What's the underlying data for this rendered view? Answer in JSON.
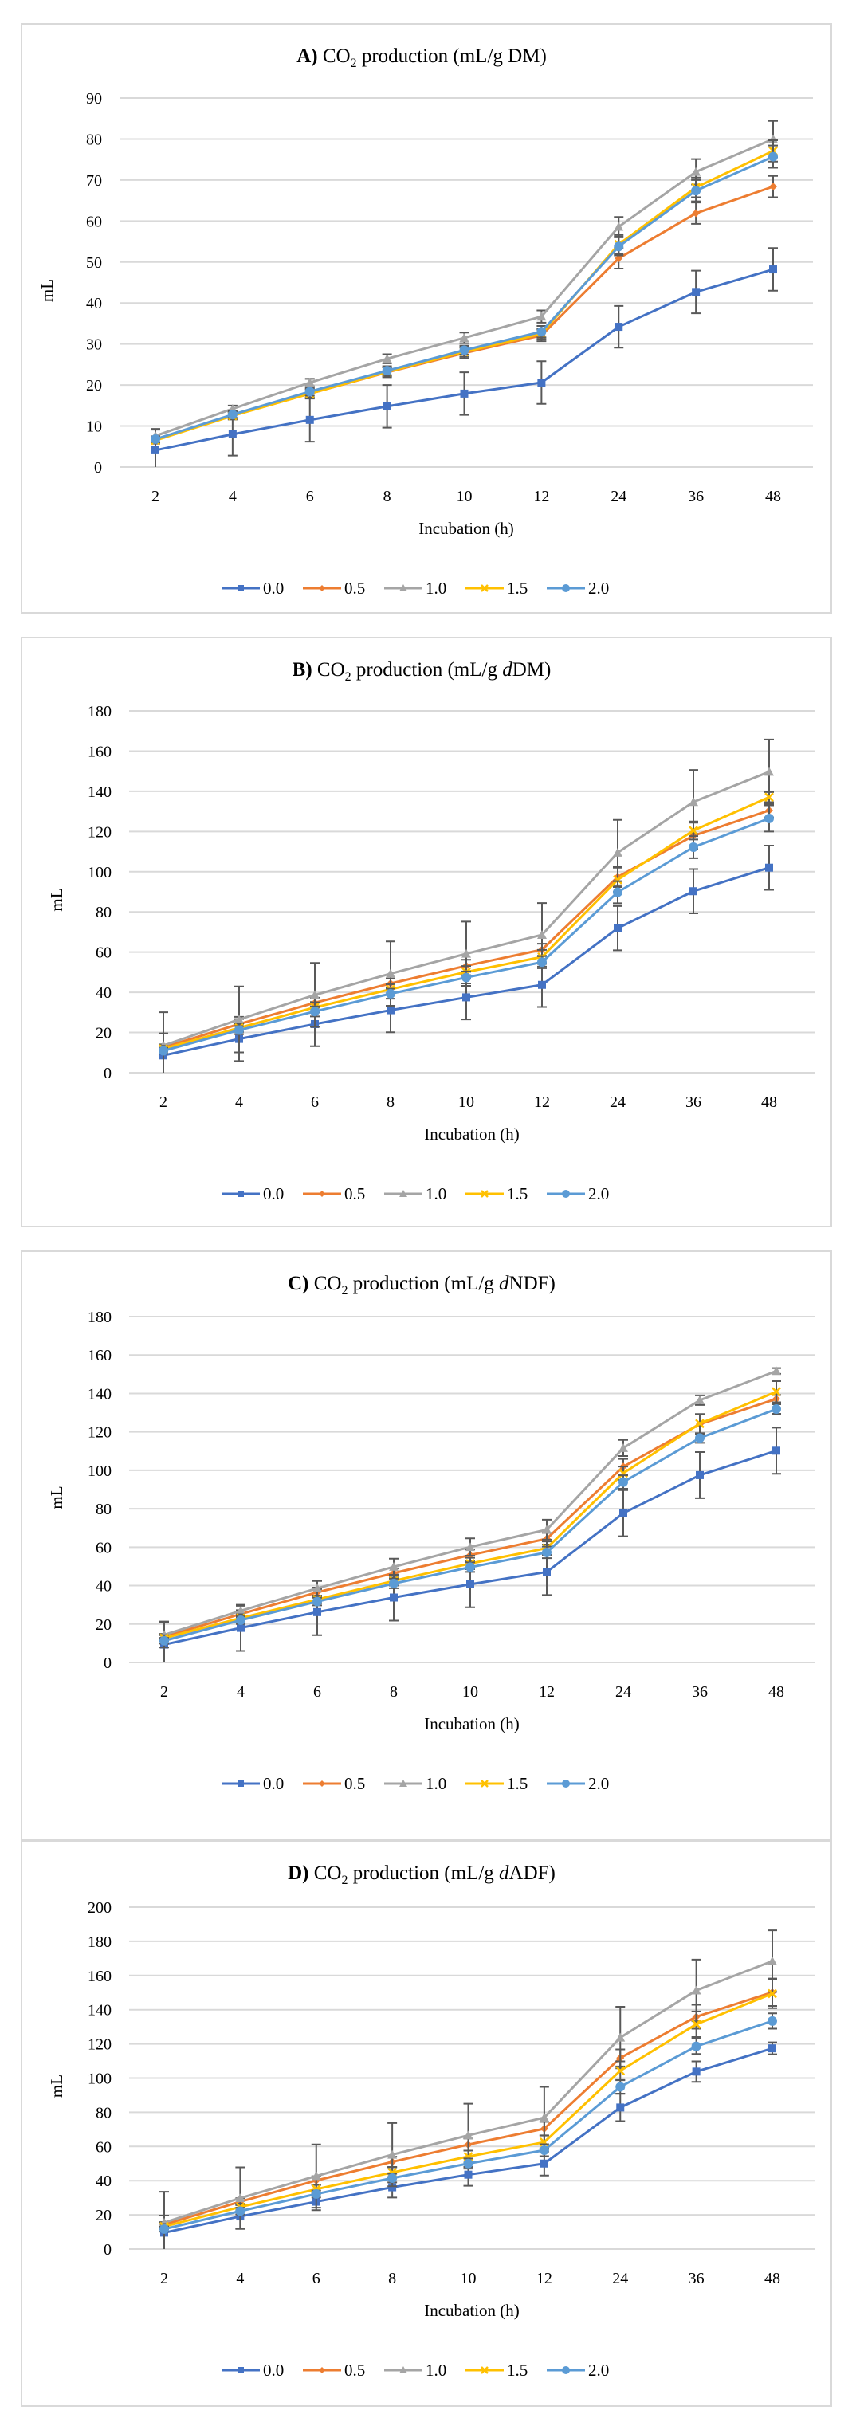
{
  "chart_data": [
    {
      "type": "line",
      "panel": "A)",
      "title_main": "CO",
      "title_sub": "2",
      "title_rest": " production (mL/g ",
      "title_italic": "",
      "title_end": "DM)",
      "title": "A) CO2 production (mL/g DM)",
      "xlabel": "Incubation (h)",
      "ylabel": "mL",
      "ylim": [
        0,
        90
      ],
      "yticks": [
        0,
        10,
        20,
        30,
        40,
        50,
        60,
        70,
        80,
        90
      ],
      "grid": true,
      "legend_position": "bottom",
      "categories": [
        "2",
        "4",
        "6",
        "8",
        "10",
        "12",
        "24",
        "36",
        "48"
      ],
      "series": [
        {
          "name": "0.0",
          "color": "#4472c4",
          "marker": "square",
          "values": [
            4.1,
            8.0,
            11.5,
            14.8,
            17.9,
            20.6,
            34.2,
            42.7,
            48.2
          ],
          "error": [
            5.0,
            5.2,
            5.3,
            5.2,
            5.2,
            5.2,
            5.1,
            5.2,
            5.2
          ]
        },
        {
          "name": "0.5",
          "color": "#ed7d31",
          "marker": "diamond",
          "values": [
            6.6,
            12.6,
            17.9,
            23.1,
            27.8,
            32.1,
            50.9,
            61.9,
            68.4
          ],
          "error": [
            0.8,
            0.9,
            1.2,
            1.2,
            1.3,
            1.4,
            2.5,
            2.6,
            2.6
          ]
        },
        {
          "name": "1.0",
          "color": "#a5a5a5",
          "marker": "triangle",
          "values": [
            7.6,
            14.2,
            20.6,
            26.4,
            31.5,
            36.7,
            58.6,
            72.0,
            80.0
          ],
          "error": [
            1.7,
            0.8,
            0.9,
            1.1,
            1.3,
            1.5,
            2.4,
            3.1,
            4.4
          ]
        },
        {
          "name": "1.5",
          "color": "#ffc000",
          "marker": "x",
          "values": [
            6.5,
            12.5,
            17.9,
            23.2,
            28.1,
            32.5,
            54.3,
            68.2,
            77.1
          ],
          "error": [
            0.8,
            0.9,
            1.0,
            1.1,
            1.2,
            1.3,
            2.3,
            2.4,
            2.6
          ]
        },
        {
          "name": "2.0",
          "color": "#5b9bd5",
          "marker": "circle",
          "values": [
            6.8,
            12.8,
            18.4,
            23.5,
            28.5,
            33.0,
            53.8,
            67.4,
            75.7
          ],
          "error": [
            0.7,
            0.8,
            1.0,
            1.1,
            1.1,
            1.4,
            2.2,
            2.6,
            2.7
          ]
        }
      ]
    },
    {
      "type": "line",
      "panel": "B)",
      "title_main": "CO",
      "title_sub": "2",
      "title_rest": " production (mL/g ",
      "title_italic": "d",
      "title_end": "DM)",
      "title": "B) CO2 production (mL/g dDM)",
      "xlabel": "Incubation (h)",
      "ylabel": "mL",
      "ylim": [
        0,
        180
      ],
      "yticks": [
        0,
        20,
        40,
        60,
        80,
        100,
        120,
        140,
        160,
        180
      ],
      "grid": true,
      "legend_position": "bottom",
      "categories": [
        "2",
        "4",
        "6",
        "8",
        "10",
        "12",
        "24",
        "36",
        "48"
      ],
      "series": [
        {
          "name": "0.0",
          "color": "#4472c4",
          "marker": "square",
          "values": [
            8.6,
            16.8,
            24.2,
            31.1,
            37.5,
            43.7,
            71.9,
            90.3,
            102.0
          ],
          "error": [
            11.0,
            11.0,
            11.0,
            11.0,
            11.0,
            11.0,
            11.0,
            11.0,
            11.0
          ]
        },
        {
          "name": "0.5",
          "color": "#ed7d31",
          "marker": "diamond",
          "values": [
            12.6,
            24.2,
            34.8,
            44.4,
            53.2,
            61.2,
            97.4,
            117.9,
            130.5
          ],
          "error": [
            1.5,
            2.5,
            2.5,
            2.5,
            3.0,
            3.0,
            5.0,
            6.5,
            3.5
          ]
        },
        {
          "name": "1.0",
          "color": "#a5a5a5",
          "marker": "triangle",
          "values": [
            13.5,
            26.5,
            38.7,
            49.3,
            59.2,
            68.6,
            109.5,
            134.7,
            149.7
          ],
          "error": [
            16.6,
            16.4,
            15.9,
            16.0,
            16.0,
            15.8,
            16.3,
            15.9,
            16.1
          ]
        },
        {
          "name": "1.5",
          "color": "#ffc000",
          "marker": "x",
          "values": [
            11.9,
            22.3,
            32.5,
            41.5,
            50.1,
            57.6,
            96.0,
            120.5,
            137.1
          ],
          "error": [
            1.5,
            2.0,
            2.5,
            2.5,
            3.0,
            3.5,
            6.0,
            4.5,
            2.5
          ]
        },
        {
          "name": "2.0",
          "color": "#5b9bd5",
          "marker": "circle",
          "values": [
            10.9,
            21.2,
            30.5,
            39.3,
            47.4,
            55.0,
            89.8,
            112.2,
            126.5
          ],
          "error": [
            1.5,
            2.0,
            2.5,
            2.5,
            3.0,
            3.0,
            5.5,
            5.5,
            6.5
          ]
        }
      ]
    },
    {
      "type": "line",
      "panel": "C)",
      "title_main": "CO",
      "title_sub": "2",
      "title_rest": " production (mL/g ",
      "title_italic": "d",
      "title_end": "NDF)",
      "title": "C) CO2 production (mL/g dNDF)",
      "xlabel": "Incubation (h)",
      "ylabel": "mL",
      "ylim": [
        0,
        180
      ],
      "yticks": [
        0,
        20,
        40,
        60,
        80,
        100,
        120,
        140,
        160,
        180
      ],
      "grid": true,
      "legend_position": "bottom",
      "categories": [
        "2",
        "4",
        "6",
        "8",
        "10",
        "12",
        "24",
        "36",
        "48"
      ],
      "series": [
        {
          "name": "0.0",
          "color": "#4472c4",
          "marker": "square",
          "values": [
            9.3,
            18.0,
            26.2,
            33.8,
            40.7,
            47.1,
            77.7,
            97.5,
            110.2
          ],
          "error": [
            12.0,
            12.0,
            12.0,
            12.0,
            12.0,
            12.0,
            12.0,
            12.0,
            12.0
          ]
        },
        {
          "name": "0.5",
          "color": "#ed7d31",
          "marker": "diamond",
          "values": [
            13.4,
            25.2,
            36.5,
            46.5,
            55.9,
            64.4,
            101.9,
            124.0,
            137.2
          ],
          "error": [
            1.5,
            2.0,
            2.5,
            2.5,
            3.0,
            3.0,
            4.0,
            5.0,
            2.0
          ]
        },
        {
          "name": "1.0",
          "color": "#a5a5a5",
          "marker": "triangle",
          "values": [
            14.4,
            26.9,
            38.6,
            49.8,
            60.1,
            69.1,
            111.6,
            136.5,
            151.7
          ],
          "error": [
            6.6,
            2.6,
            3.8,
            4.2,
            4.5,
            5.2,
            4.2,
            2.5,
            1.5
          ]
        },
        {
          "name": "1.5",
          "color": "#ffc000",
          "marker": "x",
          "values": [
            12.7,
            23.1,
            32.8,
            42.5,
            51.5,
            59.5,
            98.5,
            124.3,
            140.9
          ],
          "error": [
            1.5,
            2.0,
            2.0,
            2.5,
            3.0,
            3.5,
            3.5,
            5.0,
            5.5
          ]
        },
        {
          "name": "2.0",
          "color": "#5b9bd5",
          "marker": "circle",
          "values": [
            11.3,
            22.0,
            31.7,
            41.1,
            49.6,
            57.3,
            93.9,
            116.8,
            131.9
          ],
          "error": [
            1.5,
            2.0,
            2.0,
            2.5,
            2.5,
            3.0,
            3.5,
            2.5,
            2.5
          ]
        }
      ]
    },
    {
      "type": "line",
      "panel": "D)",
      "title_main": "CO",
      "title_sub": "2",
      "title_rest": " production (mL/g ",
      "title_italic": "d",
      "title_end": "ADF)",
      "title": "D) CO2 production (mL/g dADF)",
      "xlabel": "Incubation (h)",
      "ylabel": "mL",
      "ylim": [
        0,
        200
      ],
      "yticks": [
        0,
        20,
        40,
        60,
        80,
        100,
        120,
        140,
        160,
        180,
        200
      ],
      "grid": true,
      "legend_position": "bottom",
      "categories": [
        "2",
        "4",
        "6",
        "8",
        "10",
        "12",
        "24",
        "36",
        "48"
      ],
      "series": [
        {
          "name": "0.0",
          "color": "#4472c4",
          "marker": "square",
          "values": [
            9.6,
            19.1,
            27.7,
            36.1,
            43.5,
            50.0,
            82.8,
            103.8,
            117.4
          ],
          "error": [
            10.0,
            7.0,
            5.0,
            6.0,
            6.5,
            7.0,
            8.0,
            6.0,
            3.5
          ]
        },
        {
          "name": "0.5",
          "color": "#ed7d31",
          "marker": "diamond",
          "values": [
            14.3,
            27.7,
            40.1,
            51.0,
            61.1,
            70.4,
            111.8,
            135.9,
            150.2
          ],
          "error": [
            1.5,
            2.0,
            2.5,
            3.0,
            3.5,
            4.0,
            5.0,
            7.0,
            8.0
          ]
        },
        {
          "name": "1.0",
          "color": "#a5a5a5",
          "marker": "triangle",
          "values": [
            15.5,
            29.8,
            42.7,
            55.2,
            66.5,
            76.9,
            123.7,
            151.3,
            168.4
          ],
          "error": [
            18.0,
            18.0,
            18.5,
            18.5,
            18.5,
            18.0,
            18.0,
            18.0,
            18.0
          ]
        },
        {
          "name": "1.5",
          "color": "#ffc000",
          "marker": "x",
          "values": [
            13.2,
            24.6,
            35.0,
            44.8,
            54.1,
            62.5,
            104.3,
            131.5,
            149.4
          ],
          "error": [
            1.5,
            2.0,
            2.5,
            3.0,
            3.5,
            4.0,
            5.5,
            7.5,
            8.5
          ]
        },
        {
          "name": "2.0",
          "color": "#5b9bd5",
          "marker": "circle",
          "values": [
            11.7,
            22.2,
            32.2,
            41.5,
            50.0,
            57.8,
            94.9,
            118.6,
            133.4
          ],
          "error": [
            1.5,
            2.0,
            2.0,
            2.5,
            3.0,
            3.5,
            4.0,
            4.5,
            4.5
          ]
        }
      ]
    }
  ]
}
